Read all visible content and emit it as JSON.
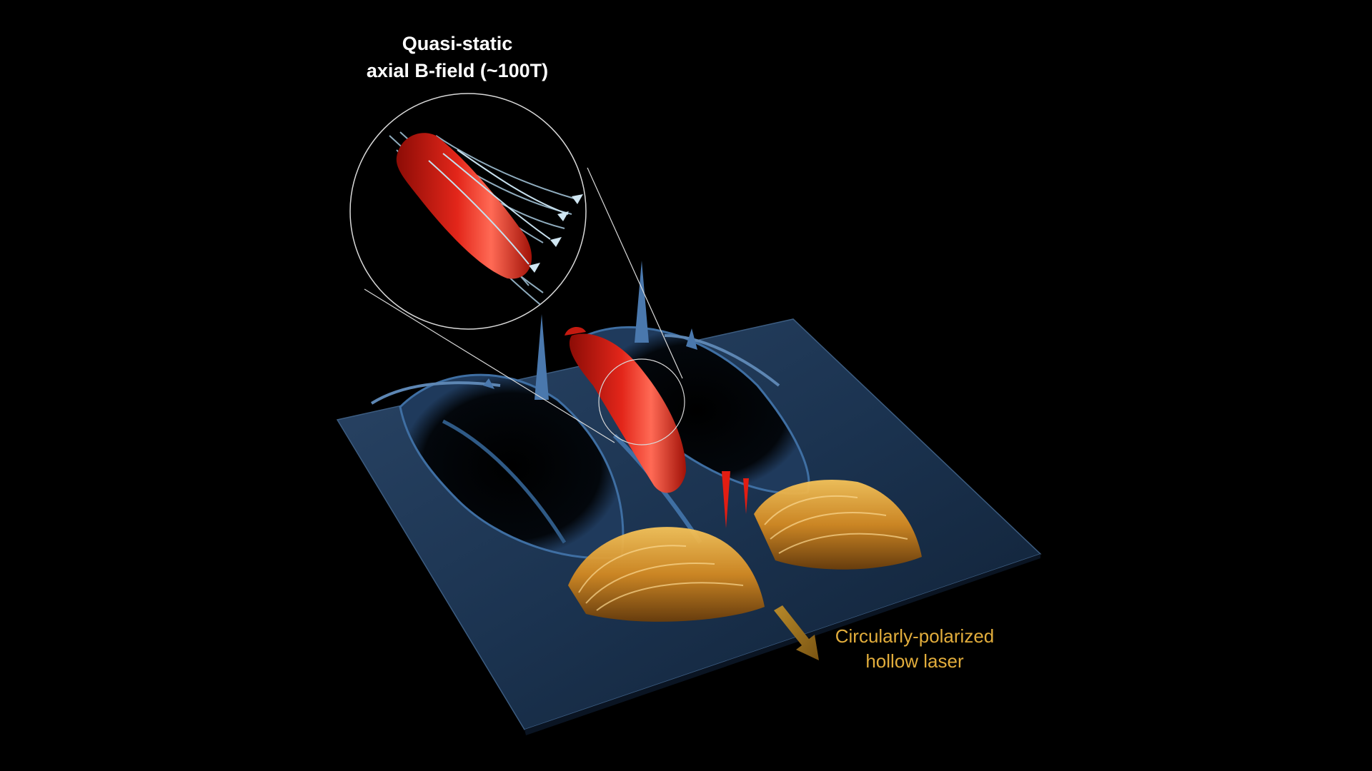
{
  "annotations": {
    "b_field_line1": "Quasi-static",
    "b_field_line2": "axial B-field (~100T)",
    "laser_line1": "Circularly-polarized",
    "laser_line2": "hollow laser"
  },
  "colors": {
    "background": "#000000",
    "plasma_surface": "#1e3a5c",
    "field_isosurface": "#d41c12",
    "laser_fringes": "#e0a23a",
    "field_lines": "#b9d6e6",
    "label_white": "#ffffff",
    "label_gold": "#e2ad3c"
  }
}
